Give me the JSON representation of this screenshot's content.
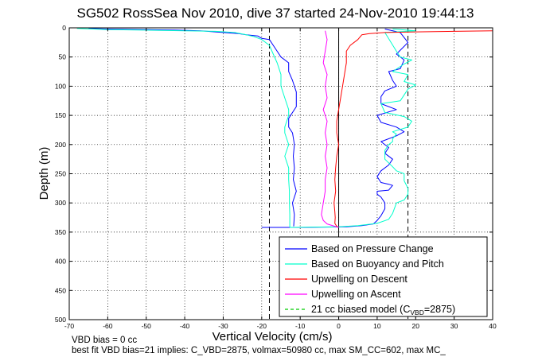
{
  "chart_data": {
    "type": "line",
    "title": "SG502 RossSea Nov 2010, dive 37 started 24-Nov-2010 19:44:13",
    "xlabel": "Vertical Velocity (cm/s)",
    "ylabel": "Depth (m)",
    "xlim": [
      -70,
      40
    ],
    "ylim": [
      0,
      500
    ],
    "y_reversed": true,
    "grid": true,
    "x_ticks": [
      "-70",
      "-60",
      "-50",
      "-40",
      "-30",
      "-20",
      "-10",
      "0",
      "10",
      "20",
      "30",
      "40"
    ],
    "y_ticks": [
      "0",
      "50",
      "100",
      "150",
      "200",
      "250",
      "300",
      "350",
      "400",
      "450",
      "500"
    ],
    "legend": {
      "placement": "bottom-right",
      "entries": [
        {
          "label": "Based on Pressure Change",
          "color": "#0000ff",
          "dash": "solid"
        },
        {
          "label": "Based on Buoyancy and Pitch",
          "color": "#00ffcc",
          "dash": "solid"
        },
        {
          "label": "Upwelling on Descent",
          "color": "#ff0000",
          "dash": "solid"
        },
        {
          "label": "Upwelling on Ascent",
          "color": "#ff00ff",
          "dash": "solid"
        },
        {
          "label": "21 cc biased model (C",
          "sub": "VBD",
          "suffix": "=2875)",
          "color": "#00cc00",
          "dash": "dashed"
        }
      ]
    },
    "reference_lines_x": [
      -18,
      18
    ],
    "series": [
      {
        "key": "pressure_descent",
        "color": "#0000ff",
        "x": [
          -65,
          -60,
          -50,
          -42,
          -36,
          -30,
          -26,
          -24,
          -21,
          -20,
          -18,
          -17,
          -16,
          -15,
          -13,
          -13,
          -12,
          -11,
          -11,
          -13,
          -13,
          -12,
          -11.5,
          -11.8,
          -11.5,
          -11.8,
          -11,
          -12,
          -11.5,
          -11.7
        ],
        "y": [
          1,
          2,
          3,
          4,
          5,
          8,
          10,
          12,
          14,
          18,
          20,
          30,
          40,
          50,
          60,
          75,
          90,
          110,
          135,
          155,
          170,
          180,
          200,
          220,
          240,
          260,
          280,
          300,
          320,
          340
        ]
      },
      {
        "key": "pressure_ascent",
        "color": "#0000ff",
        "x": [
          -20,
          -10,
          2,
          6,
          9,
          10,
          11,
          12,
          12,
          11,
          10,
          10,
          13,
          14,
          13,
          11,
          10,
          11,
          13,
          14,
          12,
          13,
          11,
          15,
          17,
          15,
          11,
          10,
          15,
          11,
          11,
          12,
          15,
          14,
          13,
          16,
          17,
          15,
          18,
          16,
          12
        ],
        "y": [
          342,
          342,
          341,
          339,
          336,
          330,
          322,
          310,
          300,
          290,
          285,
          280,
          278,
          270,
          268,
          265,
          255,
          245,
          235,
          225,
          215,
          205,
          195,
          185,
          178,
          170,
          162,
          150,
          140,
          130,
          118,
          108,
          100,
          90,
          75,
          70,
          55,
          45,
          25,
          8,
          2
        ]
      },
      {
        "key": "buoyancy_descent",
        "color": "#00ffcc",
        "x": [
          -68,
          -60,
          -50,
          -40,
          -32,
          -27,
          -24,
          -22,
          -20,
          -18,
          -17,
          -16,
          -15,
          -15,
          -14,
          -13,
          -13,
          -14,
          -14,
          -13,
          -14,
          -13,
          -13,
          -12.8,
          -12.8,
          -12.7,
          -12.7,
          -12.7
        ],
        "y": [
          1,
          3,
          4,
          5,
          6,
          8,
          12,
          15,
          20,
          30,
          45,
          60,
          80,
          100,
          120,
          140,
          150,
          170,
          180,
          200,
          220,
          240,
          260,
          280,
          300,
          320,
          335,
          342
        ]
      },
      {
        "key": "buoyancy_ascent",
        "color": "#00ffcc",
        "x": [
          -12.7,
          0,
          5,
          10,
          13,
          14,
          15,
          17,
          18,
          18,
          17,
          17,
          15,
          14,
          12,
          12,
          13,
          14,
          14,
          15,
          14,
          18,
          19,
          17,
          12,
          11,
          16,
          18,
          20,
          17,
          18,
          14,
          17,
          19,
          16,
          15,
          12,
          20,
          14
        ],
        "y": [
          342,
          341,
          339,
          335,
          328,
          318,
          300,
          295,
          285,
          275,
          262,
          250,
          245,
          238,
          225,
          210,
          200,
          195,
          190,
          182,
          178,
          170,
          160,
          152,
          145,
          130,
          125,
          105,
          98,
          92,
          80,
          75,
          62,
          55,
          50,
          40,
          8,
          5,
          2
        ]
      },
      {
        "key": "upwelling_descent",
        "color": "#ff0000",
        "x": [
          40,
          30,
          20,
          12,
          8,
          6,
          5,
          3,
          2,
          2,
          1.5,
          1,
          0.5,
          0,
          -0.5,
          -0.5,
          0,
          -0.5,
          -0.8,
          -1,
          -0.8,
          -1.2,
          -1,
          -0.9,
          -1,
          -0.5,
          0
        ],
        "y": [
          5,
          6,
          7,
          8,
          10,
          12,
          20,
          30,
          40,
          60,
          80,
          100,
          120,
          140,
          160,
          180,
          200,
          220,
          240,
          260,
          280,
          300,
          315,
          325,
          335,
          340,
          342
        ]
      },
      {
        "key": "upwelling_ascent",
        "color": "#ff00ff",
        "x": [
          0,
          -1,
          -3,
          -4,
          -4.5,
          -4,
          -3.5,
          -3.5,
          -3,
          -3.5,
          -3,
          -3.5,
          -3,
          -4,
          -3,
          -3.5,
          -3,
          -4,
          -3.5,
          -3,
          -3.5
        ],
        "y": [
          342,
          340,
          336,
          330,
          320,
          300,
          280,
          260,
          240,
          220,
          200,
          180,
          160,
          140,
          120,
          100,
          80,
          60,
          40,
          20,
          5
        ]
      }
    ]
  },
  "footer": {
    "line1": "VBD bias = 0 cc",
    "line2": "best fit VBD bias=21 implies: C_VBD=2875, volmax=50980 cc, max SM_CC=602, max MC_"
  }
}
